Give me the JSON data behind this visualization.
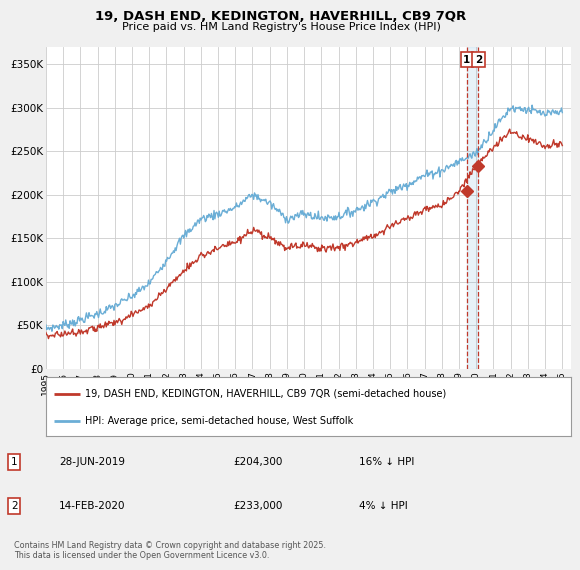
{
  "title": "19, DASH END, KEDINGTON, HAVERHILL, CB9 7QR",
  "subtitle": "Price paid vs. HM Land Registry's House Price Index (HPI)",
  "ylim": [
    0,
    370000
  ],
  "yticks": [
    0,
    50000,
    100000,
    150000,
    200000,
    250000,
    300000,
    350000
  ],
  "ytick_labels": [
    "£0",
    "£50K",
    "£100K",
    "£150K",
    "£200K",
    "£250K",
    "£300K",
    "£350K"
  ],
  "hpi_color": "#6baed6",
  "price_color": "#c0392b",
  "vline_color": "#c0392b",
  "sale1_year": 2019.46,
  "sale1_price": 204300,
  "sale2_year": 2020.12,
  "sale2_price": 233000,
  "legend1": "19, DASH END, KEDINGTON, HAVERHILL, CB9 7QR (semi-detached house)",
  "legend2": "HPI: Average price, semi-detached house, West Suffolk",
  "copyright": "Contains HM Land Registry data © Crown copyright and database right 2025.\nThis data is licensed under the Open Government Licence v3.0.",
  "background_color": "#f0f0f0",
  "plot_bg_color": "#ffffff",
  "grid_color": "#cccccc",
  "key_points_hpi": {
    "1995": 46000,
    "1996": 50000,
    "1997": 56000,
    "1998": 63000,
    "1999": 72000,
    "2000": 83000,
    "2001": 98000,
    "2002": 125000,
    "2003": 152000,
    "2004": 172000,
    "2005": 178000,
    "2006": 185000,
    "2007": 200000,
    "2008": 190000,
    "2009": 172000,
    "2010": 178000,
    "2011": 173000,
    "2012": 175000,
    "2013": 182000,
    "2014": 192000,
    "2015": 203000,
    "2016": 212000,
    "2017": 222000,
    "2018": 228000,
    "2019": 238000,
    "2020": 248000,
    "2021": 275000,
    "2022": 300000,
    "2023": 298000,
    "2024": 292000,
    "2025": 295000
  },
  "key_points_price": {
    "1995": 38000,
    "1996": 40000,
    "1997": 43000,
    "1998": 47000,
    "1999": 53000,
    "2000": 62000,
    "2001": 72000,
    "2002": 92000,
    "2003": 112000,
    "2004": 130000,
    "2005": 138000,
    "2006": 145000,
    "2007": 158000,
    "2008": 150000,
    "2009": 138000,
    "2010": 143000,
    "2011": 138000,
    "2012": 140000,
    "2013": 145000,
    "2014": 153000,
    "2015": 163000,
    "2016": 173000,
    "2017": 182000,
    "2018": 188000,
    "2019": 204300,
    "2020": 233000,
    "2021": 255000,
    "2022": 272000,
    "2023": 265000,
    "2024": 255000,
    "2025": 258000
  }
}
